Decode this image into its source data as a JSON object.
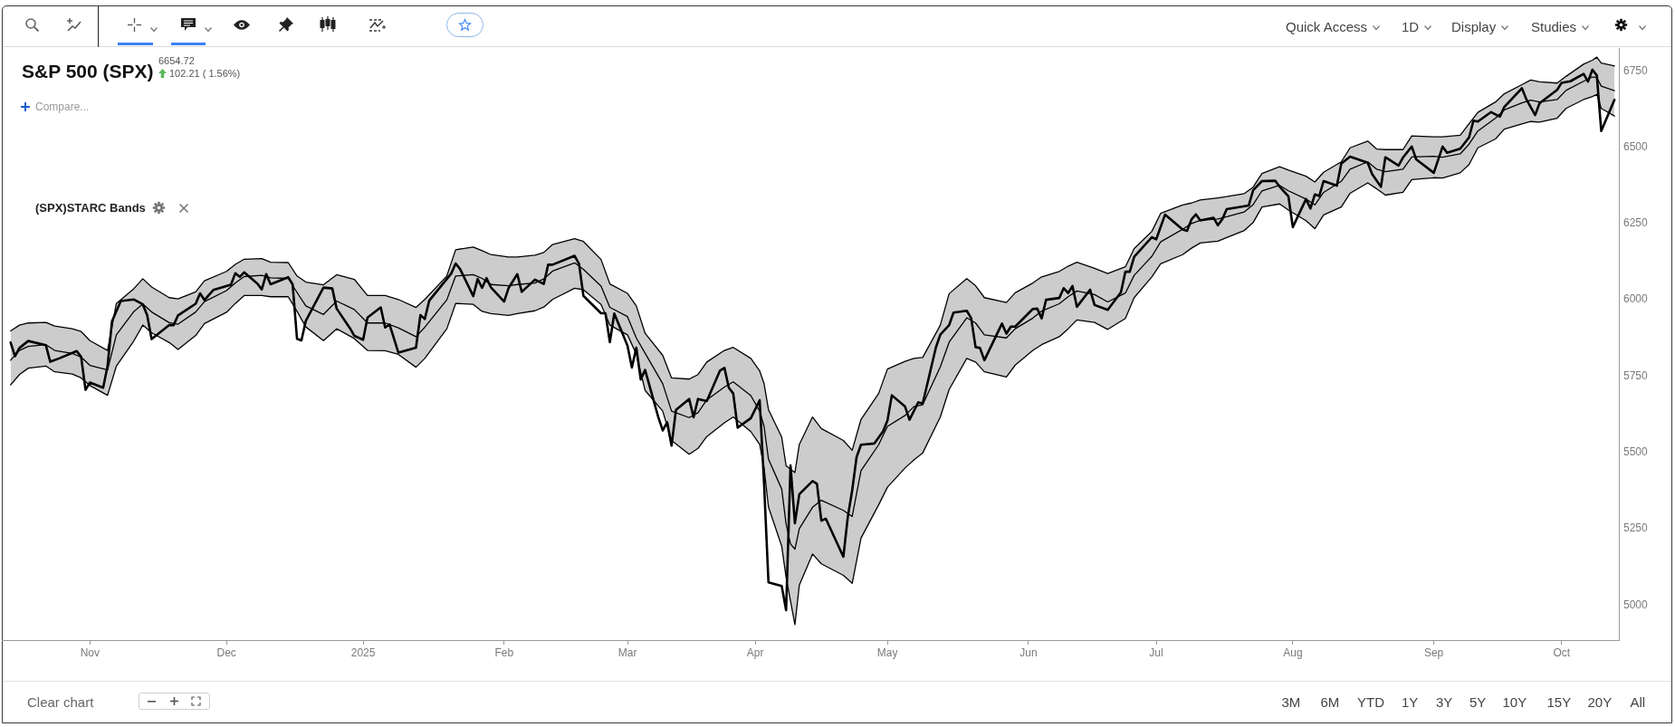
{
  "chart_data": {
    "type": "line",
    "title": "S&P 500 (SPX)",
    "annotations": [
      "6654.72",
      "102.21 ( 1.56%)",
      "Compare...",
      "(SPX)STARC Bands",
      "Quick Access",
      "1D",
      "Display",
      "Studies",
      "Clear chart",
      "3M",
      "6M",
      "YTD",
      "1Y",
      "3Y",
      "5Y",
      "10Y",
      "15Y",
      "20Y",
      "All"
    ],
    "xlim": [
      "2024-10-12",
      "2025-10-14"
    ],
    "xticks": [
      {
        "value": "2024-11-01",
        "label": "Nov"
      },
      {
        "value": "2024-12-02",
        "label": "Dec"
      },
      {
        "value": "2025-01-02",
        "label": "2025"
      },
      {
        "value": "2025-02-03",
        "label": "Feb"
      },
      {
        "value": "2025-03-03",
        "label": "Mar"
      },
      {
        "value": "2025-04-01",
        "label": "Apr"
      },
      {
        "value": "2025-05-01",
        "label": "May"
      },
      {
        "value": "2025-06-02",
        "label": "Jun"
      },
      {
        "value": "2025-07-01",
        "label": "Jul"
      },
      {
        "value": "2025-08-01",
        "label": "Aug"
      },
      {
        "value": "2025-09-02",
        "label": "Sep"
      },
      {
        "value": "2025-10-01",
        "label": "Oct"
      }
    ],
    "ylim": [
      4885,
      6825
    ],
    "yticks": [
      5000,
      5250,
      5500,
      5750,
      6000,
      6250,
      6500,
      6750
    ],
    "grid": false,
    "legend": false,
    "marker": "none",
    "series": [
      {
        "color": "#000000",
        "x": [
          "2024-10-14",
          "2024-10-15",
          "2024-10-16",
          "2024-10-18",
          "2024-10-22",
          "2024-10-23",
          "2024-10-25",
          "2024-10-29",
          "2024-10-30",
          "2024-10-31",
          "2024-11-01",
          "2024-11-04",
          "2024-11-05",
          "2024-11-06",
          "2024-11-08",
          "2024-11-11",
          "2024-11-13",
          "2024-11-14",
          "2024-11-15",
          "2024-11-19",
          "2024-11-20",
          "2024-11-21",
          "2024-11-25",
          "2024-11-26",
          "2024-11-27",
          "2024-11-29",
          "2024-12-03",
          "2024-12-04",
          "2024-12-05",
          "2024-12-06",
          "2024-12-09",
          "2024-12-10",
          "2024-12-11",
          "2024-12-12",
          "2024-12-16",
          "2024-12-17",
          "2024-12-18",
          "2024-12-19",
          "2024-12-20",
          "2024-12-24",
          "2024-12-26",
          "2024-12-27",
          "2024-12-30",
          "2024-12-31",
          "2025-01-02",
          "2025-01-03",
          "2025-01-06",
          "2025-01-07",
          "2025-01-08",
          "2025-01-10",
          "2025-01-14",
          "2025-01-15",
          "2025-01-16",
          "2025-01-17",
          "2025-01-22",
          "2025-01-23",
          "2025-01-24",
          "2025-01-27",
          "2025-01-28",
          "2025-01-29",
          "2025-01-30",
          "2025-01-31",
          "2025-02-03",
          "2025-02-04",
          "2025-02-06",
          "2025-02-07",
          "2025-02-10",
          "2025-02-12",
          "2025-02-13",
          "2025-02-14",
          "2025-02-19",
          "2025-02-20",
          "2025-02-21",
          "2025-02-25",
          "2025-02-26",
          "2025-02-27",
          "2025-02-28",
          "2025-03-03",
          "2025-03-04",
          "2025-03-05",
          "2025-03-06",
          "2025-03-07",
          "2025-03-10",
          "2025-03-11",
          "2025-03-12",
          "2025-03-13",
          "2025-03-14",
          "2025-03-17",
          "2025-03-18",
          "2025-03-19",
          "2025-03-21",
          "2025-03-24",
          "2025-03-25",
          "2025-03-26",
          "2025-03-27",
          "2025-03-28",
          "2025-03-31",
          "2025-04-02",
          "2025-04-03",
          "2025-04-04",
          "2025-04-07",
          "2025-04-08",
          "2025-04-09",
          "2025-04-10",
          "2025-04-11",
          "2025-04-14",
          "2025-04-15",
          "2025-04-16",
          "2025-04-17",
          "2025-04-21",
          "2025-04-22",
          "2025-04-23",
          "2025-04-24",
          "2025-04-25",
          "2025-04-28",
          "2025-04-30",
          "2025-05-01",
          "2025-05-02",
          "2025-05-05",
          "2025-05-06",
          "2025-05-08",
          "2025-05-09",
          "2025-05-12",
          "2025-05-13",
          "2025-05-15",
          "2025-05-16",
          "2025-05-19",
          "2025-05-20",
          "2025-05-21",
          "2025-05-22",
          "2025-05-23",
          "2025-05-27",
          "2025-05-28",
          "2025-05-29",
          "2025-05-30",
          "2025-06-03",
          "2025-06-04",
          "2025-06-05",
          "2025-06-06",
          "2025-06-09",
          "2025-06-10",
          "2025-06-11",
          "2025-06-12",
          "2025-06-13",
          "2025-06-16",
          "2025-06-17",
          "2025-06-20",
          "2025-06-23",
          "2025-06-24",
          "2025-06-25",
          "2025-06-26",
          "2025-06-30",
          "2025-07-01",
          "2025-07-03",
          "2025-07-07",
          "2025-07-08",
          "2025-07-09",
          "2025-07-10",
          "2025-07-11",
          "2025-07-14",
          "2025-07-15",
          "2025-07-16",
          "2025-07-17",
          "2025-07-22",
          "2025-07-23",
          "2025-07-25",
          "2025-07-28",
          "2025-07-29",
          "2025-07-31",
          "2025-08-01",
          "2025-08-04",
          "2025-08-05",
          "2025-08-06",
          "2025-08-07",
          "2025-08-08",
          "2025-08-11",
          "2025-08-12",
          "2025-08-14",
          "2025-08-18",
          "2025-08-19",
          "2025-08-21",
          "2025-08-22",
          "2025-08-25",
          "2025-08-26",
          "2025-08-28",
          "2025-08-29",
          "2025-09-02",
          "2025-09-04",
          "2025-09-05",
          "2025-09-08",
          "2025-09-10",
          "2025-09-11",
          "2025-09-12",
          "2025-09-15",
          "2025-09-17",
          "2025-09-18",
          "2025-09-22",
          "2025-09-23",
          "2025-09-25",
          "2025-09-26",
          "2025-09-30",
          "2025-10-01",
          "2025-10-03",
          "2025-10-06",
          "2025-10-07",
          "2025-10-08",
          "2025-10-09",
          "2025-10-10",
          "2025-10-13"
        ],
        "values": [
          5860,
          5815,
          5842,
          5865,
          5851,
          5797,
          5808,
          5832,
          5813,
          5705,
          5729,
          5712,
          5783,
          5929,
          5996,
          6001,
          5985,
          5949,
          5871,
          5917,
          5917,
          5949,
          5987,
          6021,
          5999,
          6032,
          6049,
          6087,
          6075,
          6090,
          6053,
          6034,
          6084,
          6051,
          6074,
          6051,
          5872,
          5867,
          5931,
          6040,
          6037,
          5971,
          5907,
          5882,
          5869,
          5942,
          5975,
          5909,
          5919,
          5827,
          5843,
          5950,
          5937,
          5997,
          6086,
          6119,
          6101,
          6012,
          6068,
          6039,
          6071,
          6041,
          5994,
          6038,
          6084,
          6026,
          6066,
          6052,
          6115,
          6115,
          6144,
          6118,
          6013,
          5956,
          5956,
          5861,
          5955,
          5850,
          5778,
          5843,
          5739,
          5770,
          5615,
          5572,
          5599,
          5522,
          5639,
          5675,
          5615,
          5675,
          5668,
          5768,
          5777,
          5712,
          5693,
          5581,
          5612,
          5671,
          5397,
          5074,
          5062,
          4983,
          5457,
          5268,
          5363,
          5406,
          5397,
          5276,
          5283,
          5158,
          5288,
          5376,
          5485,
          5525,
          5529,
          5569,
          5604,
          5687,
          5650,
          5607,
          5664,
          5660,
          5844,
          5886,
          5917,
          5958,
          5964,
          5940,
          5845,
          5842,
          5802,
          5922,
          5889,
          5912,
          5912,
          5970,
          5971,
          5939,
          6000,
          6006,
          6038,
          6022,
          6045,
          5977,
          6033,
          5983,
          5967,
          6025,
          6092,
          6092,
          6141,
          6205,
          6198,
          6279,
          6230,
          6226,
          6263,
          6280,
          6260,
          6269,
          6244,
          6264,
          6297,
          6309,
          6359,
          6389,
          6390,
          6371,
          6339,
          6238,
          6330,
          6299,
          6345,
          6340,
          6389,
          6374,
          6446,
          6469,
          6449,
          6412,
          6370,
          6467,
          6440,
          6466,
          6502,
          6460,
          6416,
          6502,
          6482,
          6495,
          6532,
          6587,
          6584,
          6615,
          6600,
          6632,
          6693,
          6657,
          6605,
          6644,
          6688,
          6711,
          6716,
          6740,
          6715,
          6754,
          6735,
          6553,
          6655
        ]
      },
      {
        "color": "#000000",
        "x": [
          "2024-10-14",
          "2024-10-16",
          "2024-10-18",
          "2024-10-22",
          "2024-10-24",
          "2024-10-28",
          "2024-10-30",
          "2024-11-01",
          "2024-11-05",
          "2024-11-07",
          "2024-11-11",
          "2024-11-13",
          "2024-11-15",
          "2024-11-19",
          "2024-11-21",
          "2024-11-25",
          "2024-11-27",
          "2024-12-02",
          "2024-12-04",
          "2024-12-06",
          "2024-12-10",
          "2024-12-12",
          "2024-12-16",
          "2024-12-18",
          "2024-12-20",
          "2024-12-24",
          "2024-12-27",
          "2024-12-31",
          "2025-01-03",
          "2025-01-07",
          "2025-01-10",
          "2025-01-14",
          "2025-01-16",
          "2025-01-21",
          "2025-01-23",
          "2025-01-27",
          "2025-01-29",
          "2025-01-31",
          "2025-02-04",
          "2025-02-06",
          "2025-02-10",
          "2025-02-12",
          "2025-02-14",
          "2025-02-19",
          "2025-02-21",
          "2025-02-25",
          "2025-02-27",
          "2025-03-03",
          "2025-03-05",
          "2025-03-07",
          "2025-03-11",
          "2025-03-13",
          "2025-03-17",
          "2025-03-19",
          "2025-03-21",
          "2025-03-25",
          "2025-03-27",
          "2025-03-31",
          "2025-04-02",
          "2025-04-03",
          "2025-04-04",
          "2025-04-07",
          "2025-04-08",
          "2025-04-09",
          "2025-04-10",
          "2025-04-11",
          "2025-04-14",
          "2025-04-16",
          "2025-04-21",
          "2025-04-23",
          "2025-04-25",
          "2025-04-29",
          "2025-05-01",
          "2025-05-05",
          "2025-05-07",
          "2025-05-09",
          "2025-05-13",
          "2025-05-15",
          "2025-05-19",
          "2025-05-21",
          "2025-05-23",
          "2025-05-28",
          "2025-05-30",
          "2025-06-03",
          "2025-06-05",
          "2025-06-09",
          "2025-06-11",
          "2025-06-13",
          "2025-06-17",
          "2025-06-20",
          "2025-06-24",
          "2025-06-26",
          "2025-06-30",
          "2025-07-02",
          "2025-07-07",
          "2025-07-09",
          "2025-07-11",
          "2025-07-15",
          "2025-07-17",
          "2025-07-21",
          "2025-07-23",
          "2025-07-25",
          "2025-07-29",
          "2025-07-31",
          "2025-08-04",
          "2025-08-06",
          "2025-08-08",
          "2025-08-12",
          "2025-08-14",
          "2025-08-18",
          "2025-08-20",
          "2025-08-22",
          "2025-08-26",
          "2025-08-28",
          "2025-09-02",
          "2025-09-04",
          "2025-09-08",
          "2025-09-10",
          "2025-09-12",
          "2025-09-16",
          "2025-09-18",
          "2025-09-22",
          "2025-09-24",
          "2025-09-26",
          "2025-09-30",
          "2025-10-02",
          "2025-10-06",
          "2025-10-08",
          "2025-10-09",
          "2025-10-10",
          "2025-10-13"
        ],
        "values": [
          5802,
          5834,
          5847,
          5853,
          5834,
          5824,
          5812,
          5785,
          5770,
          5885,
          5962,
          5986,
          5960,
          5925,
          5920,
          5960,
          5994,
          6030,
          6055,
          6076,
          6080,
          6072,
          6070,
          6024,
          5980,
          5952,
          5996,
          5968,
          5924,
          5924,
          5908,
          5879,
          5910,
          6000,
          6078,
          6082,
          6070,
          6050,
          6046,
          6050,
          6055,
          6068,
          6094,
          6121,
          6100,
          6045,
          5975,
          5945,
          5875,
          5825,
          5725,
          5635,
          5614,
          5630,
          5672,
          5714,
          5731,
          5686,
          5635,
          5585,
          5478,
          5380,
          5265,
          5200,
          5183,
          5250,
          5320,
          5343,
          5310,
          5290,
          5440,
          5525,
          5585,
          5621,
          5650,
          5656,
          5780,
          5861,
          5941,
          5924,
          5885,
          5875,
          5905,
          5940,
          5963,
          5987,
          6010,
          6029,
          6017,
          5993,
          6022,
          6080,
          6142,
          6190,
          6231,
          6250,
          6260,
          6265,
          6272,
          6288,
          6312,
          6357,
          6375,
          6357,
          6330,
          6311,
          6352,
          6388,
          6428,
          6452,
          6428,
          6420,
          6428,
          6468,
          6470,
          6467,
          6478,
          6510,
          6553,
          6595,
          6622,
          6645,
          6654,
          6648,
          6656,
          6686,
          6716,
          6730,
          6728,
          6700,
          6685
        ],
        "lower": [
          5721,
          5755,
          5776,
          5783,
          5764,
          5757,
          5744,
          5719,
          5687,
          5783,
          5866,
          5917,
          5892,
          5860,
          5837,
          5883,
          5922,
          5959,
          5988,
          6014,
          6014,
          6010,
          6010,
          5962,
          5911,
          5866,
          5905,
          5873,
          5834,
          5833,
          5821,
          5779,
          5808,
          5905,
          5988,
          5985,
          5962,
          5955,
          5949,
          5955,
          5964,
          5976,
          6001,
          6038,
          6033,
          5985,
          5917,
          5885,
          5822,
          5703,
          5635,
          5539,
          5494,
          5513,
          5552,
          5597,
          5616,
          5568,
          5526,
          5449,
          5321,
          5193,
          5090,
          5013,
          4936,
          5065,
          5167,
          5135,
          5097,
          5071,
          5219,
          5328,
          5386,
          5449,
          5475,
          5498,
          5616,
          5706,
          5808,
          5796,
          5764,
          5747,
          5786,
          5834,
          5853,
          5879,
          5905,
          5934,
          5926,
          5903,
          5939,
          6007,
          6075,
          6118,
          6148,
          6169,
          6186,
          6192,
          6204,
          6227,
          6253,
          6304,
          6314,
          6294,
          6259,
          6233,
          6278,
          6304,
          6349,
          6383,
          6364,
          6343,
          6352,
          6394,
          6400,
          6399,
          6416,
          6443,
          6498,
          6527,
          6559,
          6576,
          6584,
          6582,
          6595,
          6627,
          6656,
          6666,
          6673,
          6627,
          6602
        ],
        "upper": [
          5898,
          5917,
          5924,
          5926,
          5914,
          5905,
          5896,
          5866,
          5834,
          5988,
          6037,
          6069,
          6042,
          6007,
          6003,
          6026,
          6062,
          6093,
          6116,
          6133,
          6135,
          6123,
          6122,
          6078,
          6058,
          6049,
          6082,
          6067,
          6014,
          6014,
          6001,
          5975,
          6001,
          6078,
          6164,
          6173,
          6161,
          6148,
          6140,
          6140,
          6146,
          6155,
          6181,
          6200,
          6191,
          6132,
          6052,
          6021,
          5980,
          5890,
          5818,
          5744,
          5740,
          5755,
          5796,
          5834,
          5844,
          5808,
          5767,
          5725,
          5640,
          5550,
          5456,
          5445,
          5434,
          5526,
          5616,
          5578,
          5539,
          5507,
          5608,
          5693,
          5773,
          5798,
          5808,
          5811,
          5917,
          6020,
          6069,
          6046,
          6007,
          5991,
          6023,
          6055,
          6075,
          6093,
          6110,
          6123,
          6103,
          6086,
          6108,
          6168,
          6224,
          6283,
          6311,
          6317,
          6327,
          6334,
          6338,
          6348,
          6369,
          6414,
          6436,
          6425,
          6405,
          6386,
          6418,
          6452,
          6498,
          6520,
          6494,
          6492,
          6492,
          6537,
          6534,
          6534,
          6539,
          6577,
          6614,
          6648,
          6675,
          6705,
          6720,
          6714,
          6710,
          6732,
          6772,
          6785,
          6795,
          6776,
          6766
        ]
      },
      {
        "color": "#000000",
        "x": [
          "2024-10-14",
          "2024-10-16",
          "2024-10-18",
          "2024-10-22",
          "2024-10-24",
          "2024-10-28",
          "2024-10-30",
          "2024-11-01",
          "2024-11-05",
          "2024-11-07",
          "2024-11-11",
          "2024-11-13",
          "2024-11-15",
          "2024-11-19",
          "2024-11-21",
          "2024-11-25",
          "2024-11-27",
          "2024-12-02",
          "2024-12-04",
          "2024-12-06",
          "2024-12-10",
          "2024-12-12",
          "2024-12-16",
          "2024-12-18",
          "2024-12-20",
          "2024-12-24",
          "2024-12-27",
          "2024-12-31",
          "2025-01-03",
          "2025-01-07",
          "2025-01-10",
          "2025-01-14",
          "2025-01-16",
          "2025-01-21",
          "2025-01-23",
          "2025-01-27",
          "2025-01-29",
          "2025-01-31",
          "2025-02-04",
          "2025-02-06",
          "2025-02-10",
          "2025-02-12",
          "2025-02-14",
          "2025-02-19",
          "2025-02-21",
          "2025-02-25",
          "2025-02-27",
          "2025-03-03",
          "2025-03-05",
          "2025-03-07",
          "2025-03-11",
          "2025-03-13",
          "2025-03-17",
          "2025-03-19",
          "2025-03-21",
          "2025-03-25",
          "2025-03-27",
          "2025-03-31",
          "2025-04-02",
          "2025-04-03",
          "2025-04-04",
          "2025-04-07",
          "2025-04-08",
          "2025-04-09",
          "2025-04-10",
          "2025-04-11",
          "2025-04-14",
          "2025-04-16",
          "2025-04-21",
          "2025-04-23",
          "2025-04-25",
          "2025-04-29",
          "2025-05-01",
          "2025-05-05",
          "2025-05-07",
          "2025-05-09",
          "2025-05-13",
          "2025-05-15",
          "2025-05-19",
          "2025-05-21",
          "2025-05-23",
          "2025-05-28",
          "2025-05-30",
          "2025-06-03",
          "2025-06-05",
          "2025-06-09",
          "2025-06-11",
          "2025-06-13",
          "2025-06-17",
          "2025-06-20",
          "2025-06-24",
          "2025-06-26",
          "2025-06-30",
          "2025-07-02",
          "2025-07-07",
          "2025-07-09",
          "2025-07-11",
          "2025-07-15",
          "2025-07-17",
          "2025-07-21",
          "2025-07-23",
          "2025-07-25",
          "2025-07-29",
          "2025-07-31",
          "2025-08-04",
          "2025-08-06",
          "2025-08-08",
          "2025-08-12",
          "2025-08-14",
          "2025-08-18",
          "2025-08-20",
          "2025-08-22",
          "2025-08-26",
          "2025-08-28",
          "2025-09-02",
          "2025-09-04",
          "2025-09-08",
          "2025-09-10",
          "2025-09-12",
          "2025-09-16",
          "2025-09-18",
          "2025-09-22",
          "2025-09-24",
          "2025-09-26",
          "2025-09-30",
          "2025-10-02",
          "2025-10-06",
          "2025-10-08",
          "2025-10-09",
          "2025-10-10",
          "2025-10-13"
        ],
        "values": [
          5898,
          5917,
          5924,
          5926,
          5914,
          5905,
          5896,
          5866,
          5834,
          5988,
          6037,
          6069,
          6042,
          6007,
          6003,
          6026,
          6062,
          6093,
          6116,
          6133,
          6135,
          6123,
          6122,
          6078,
          6058,
          6049,
          6082,
          6067,
          6014,
          6014,
          6001,
          5975,
          6001,
          6078,
          6164,
          6173,
          6161,
          6148,
          6140,
          6140,
          6146,
          6155,
          6181,
          6200,
          6191,
          6132,
          6052,
          6021,
          5980,
          5890,
          5818,
          5744,
          5740,
          5755,
          5796,
          5834,
          5844,
          5808,
          5767,
          5725,
          5640,
          5550,
          5456,
          5445,
          5434,
          5526,
          5616,
          5578,
          5539,
          5507,
          5608,
          5693,
          5773,
          5798,
          5808,
          5811,
          5917,
          6020,
          6069,
          6046,
          6007,
          5991,
          6023,
          6055,
          6075,
          6093,
          6110,
          6123,
          6103,
          6086,
          6108,
          6168,
          6224,
          6283,
          6311,
          6317,
          6327,
          6334,
          6338,
          6348,
          6369,
          6414,
          6436,
          6425,
          6405,
          6386,
          6418,
          6452,
          6498,
          6520,
          6494,
          6492,
          6492,
          6537,
          6534,
          6534,
          6539,
          6577,
          6614,
          6648,
          6675,
          6705,
          6720,
          6714,
          6710,
          6732,
          6772,
          6785,
          6795,
          6776,
          6766
        ]
      },
      {
        "color": "#000000",
        "x": [
          "2024-10-14",
          "2024-10-16",
          "2024-10-18",
          "2024-10-22",
          "2024-10-24",
          "2024-10-28",
          "2024-10-30",
          "2024-11-01",
          "2024-11-05",
          "2024-11-07",
          "2024-11-11",
          "2024-11-13",
          "2024-11-15",
          "2024-11-19",
          "2024-11-21",
          "2024-11-25",
          "2024-11-27",
          "2024-12-02",
          "2024-12-04",
          "2024-12-06",
          "2024-12-10",
          "2024-12-12",
          "2024-12-16",
          "2024-12-18",
          "2024-12-20",
          "2024-12-24",
          "2024-12-27",
          "2024-12-31",
          "2025-01-03",
          "2025-01-07",
          "2025-01-10",
          "2025-01-14",
          "2025-01-16",
          "2025-01-21",
          "2025-01-23",
          "2025-01-27",
          "2025-01-29",
          "2025-01-31",
          "2025-02-04",
          "2025-02-06",
          "2025-02-10",
          "2025-02-12",
          "2025-02-14",
          "2025-02-19",
          "2025-02-21",
          "2025-02-25",
          "2025-02-27",
          "2025-03-03",
          "2025-03-05",
          "2025-03-07",
          "2025-03-11",
          "2025-03-13",
          "2025-03-17",
          "2025-03-19",
          "2025-03-21",
          "2025-03-25",
          "2025-03-27",
          "2025-03-31",
          "2025-04-02",
          "2025-04-03",
          "2025-04-04",
          "2025-04-07",
          "2025-04-08",
          "2025-04-09",
          "2025-04-10",
          "2025-04-11",
          "2025-04-14",
          "2025-04-16",
          "2025-04-21",
          "2025-04-23",
          "2025-04-25",
          "2025-04-29",
          "2025-05-01",
          "2025-05-05",
          "2025-05-07",
          "2025-05-09",
          "2025-05-13",
          "2025-05-15",
          "2025-05-19",
          "2025-05-21",
          "2025-05-23",
          "2025-05-28",
          "2025-05-30",
          "2025-06-03",
          "2025-06-05",
          "2025-06-09",
          "2025-06-11",
          "2025-06-13",
          "2025-06-17",
          "2025-06-20",
          "2025-06-24",
          "2025-06-26",
          "2025-06-30",
          "2025-07-02",
          "2025-07-07",
          "2025-07-09",
          "2025-07-11",
          "2025-07-15",
          "2025-07-17",
          "2025-07-21",
          "2025-07-23",
          "2025-07-25",
          "2025-07-29",
          "2025-07-31",
          "2025-08-04",
          "2025-08-06",
          "2025-08-08",
          "2025-08-12",
          "2025-08-14",
          "2025-08-18",
          "2025-08-20",
          "2025-08-22",
          "2025-08-26",
          "2025-08-28",
          "2025-09-02",
          "2025-09-04",
          "2025-09-08",
          "2025-09-10",
          "2025-09-12",
          "2025-09-16",
          "2025-09-18",
          "2025-09-22",
          "2025-09-24",
          "2025-09-26",
          "2025-09-30",
          "2025-10-02",
          "2025-10-06",
          "2025-10-08",
          "2025-10-09",
          "2025-10-10",
          "2025-10-13"
        ],
        "values": [
          5721,
          5755,
          5776,
          5783,
          5764,
          5757,
          5744,
          5719,
          5687,
          5783,
          5866,
          5917,
          5892,
          5860,
          5837,
          5883,
          5922,
          5959,
          5988,
          6014,
          6014,
          6010,
          6010,
          5962,
          5911,
          5866,
          5905,
          5873,
          5834,
          5833,
          5821,
          5779,
          5808,
          5905,
          5988,
          5985,
          5962,
          5955,
          5949,
          5955,
          5964,
          5976,
          6001,
          6038,
          6033,
          5985,
          5917,
          5885,
          5822,
          5703,
          5635,
          5539,
          5494,
          5513,
          5552,
          5597,
          5616,
          5568,
          5526,
          5449,
          5321,
          5193,
          5090,
          5013,
          4936,
          5065,
          5167,
          5135,
          5097,
          5071,
          5219,
          5328,
          5386,
          5449,
          5475,
          5498,
          5616,
          5706,
          5808,
          5796,
          5764,
          5747,
          5786,
          5834,
          5853,
          5879,
          5905,
          5934,
          5926,
          5903,
          5939,
          6007,
          6075,
          6118,
          6148,
          6169,
          6186,
          6192,
          6204,
          6227,
          6253,
          6304,
          6314,
          6294,
          6259,
          6233,
          6278,
          6304,
          6349,
          6383,
          6364,
          6343,
          6352,
          6394,
          6400,
          6399,
          6416,
          6443,
          6498,
          6527,
          6559,
          6576,
          6584,
          6582,
          6595,
          6627,
          6656,
          6666,
          6673,
          6627,
          6602
        ]
      }
    ]
  }
}
